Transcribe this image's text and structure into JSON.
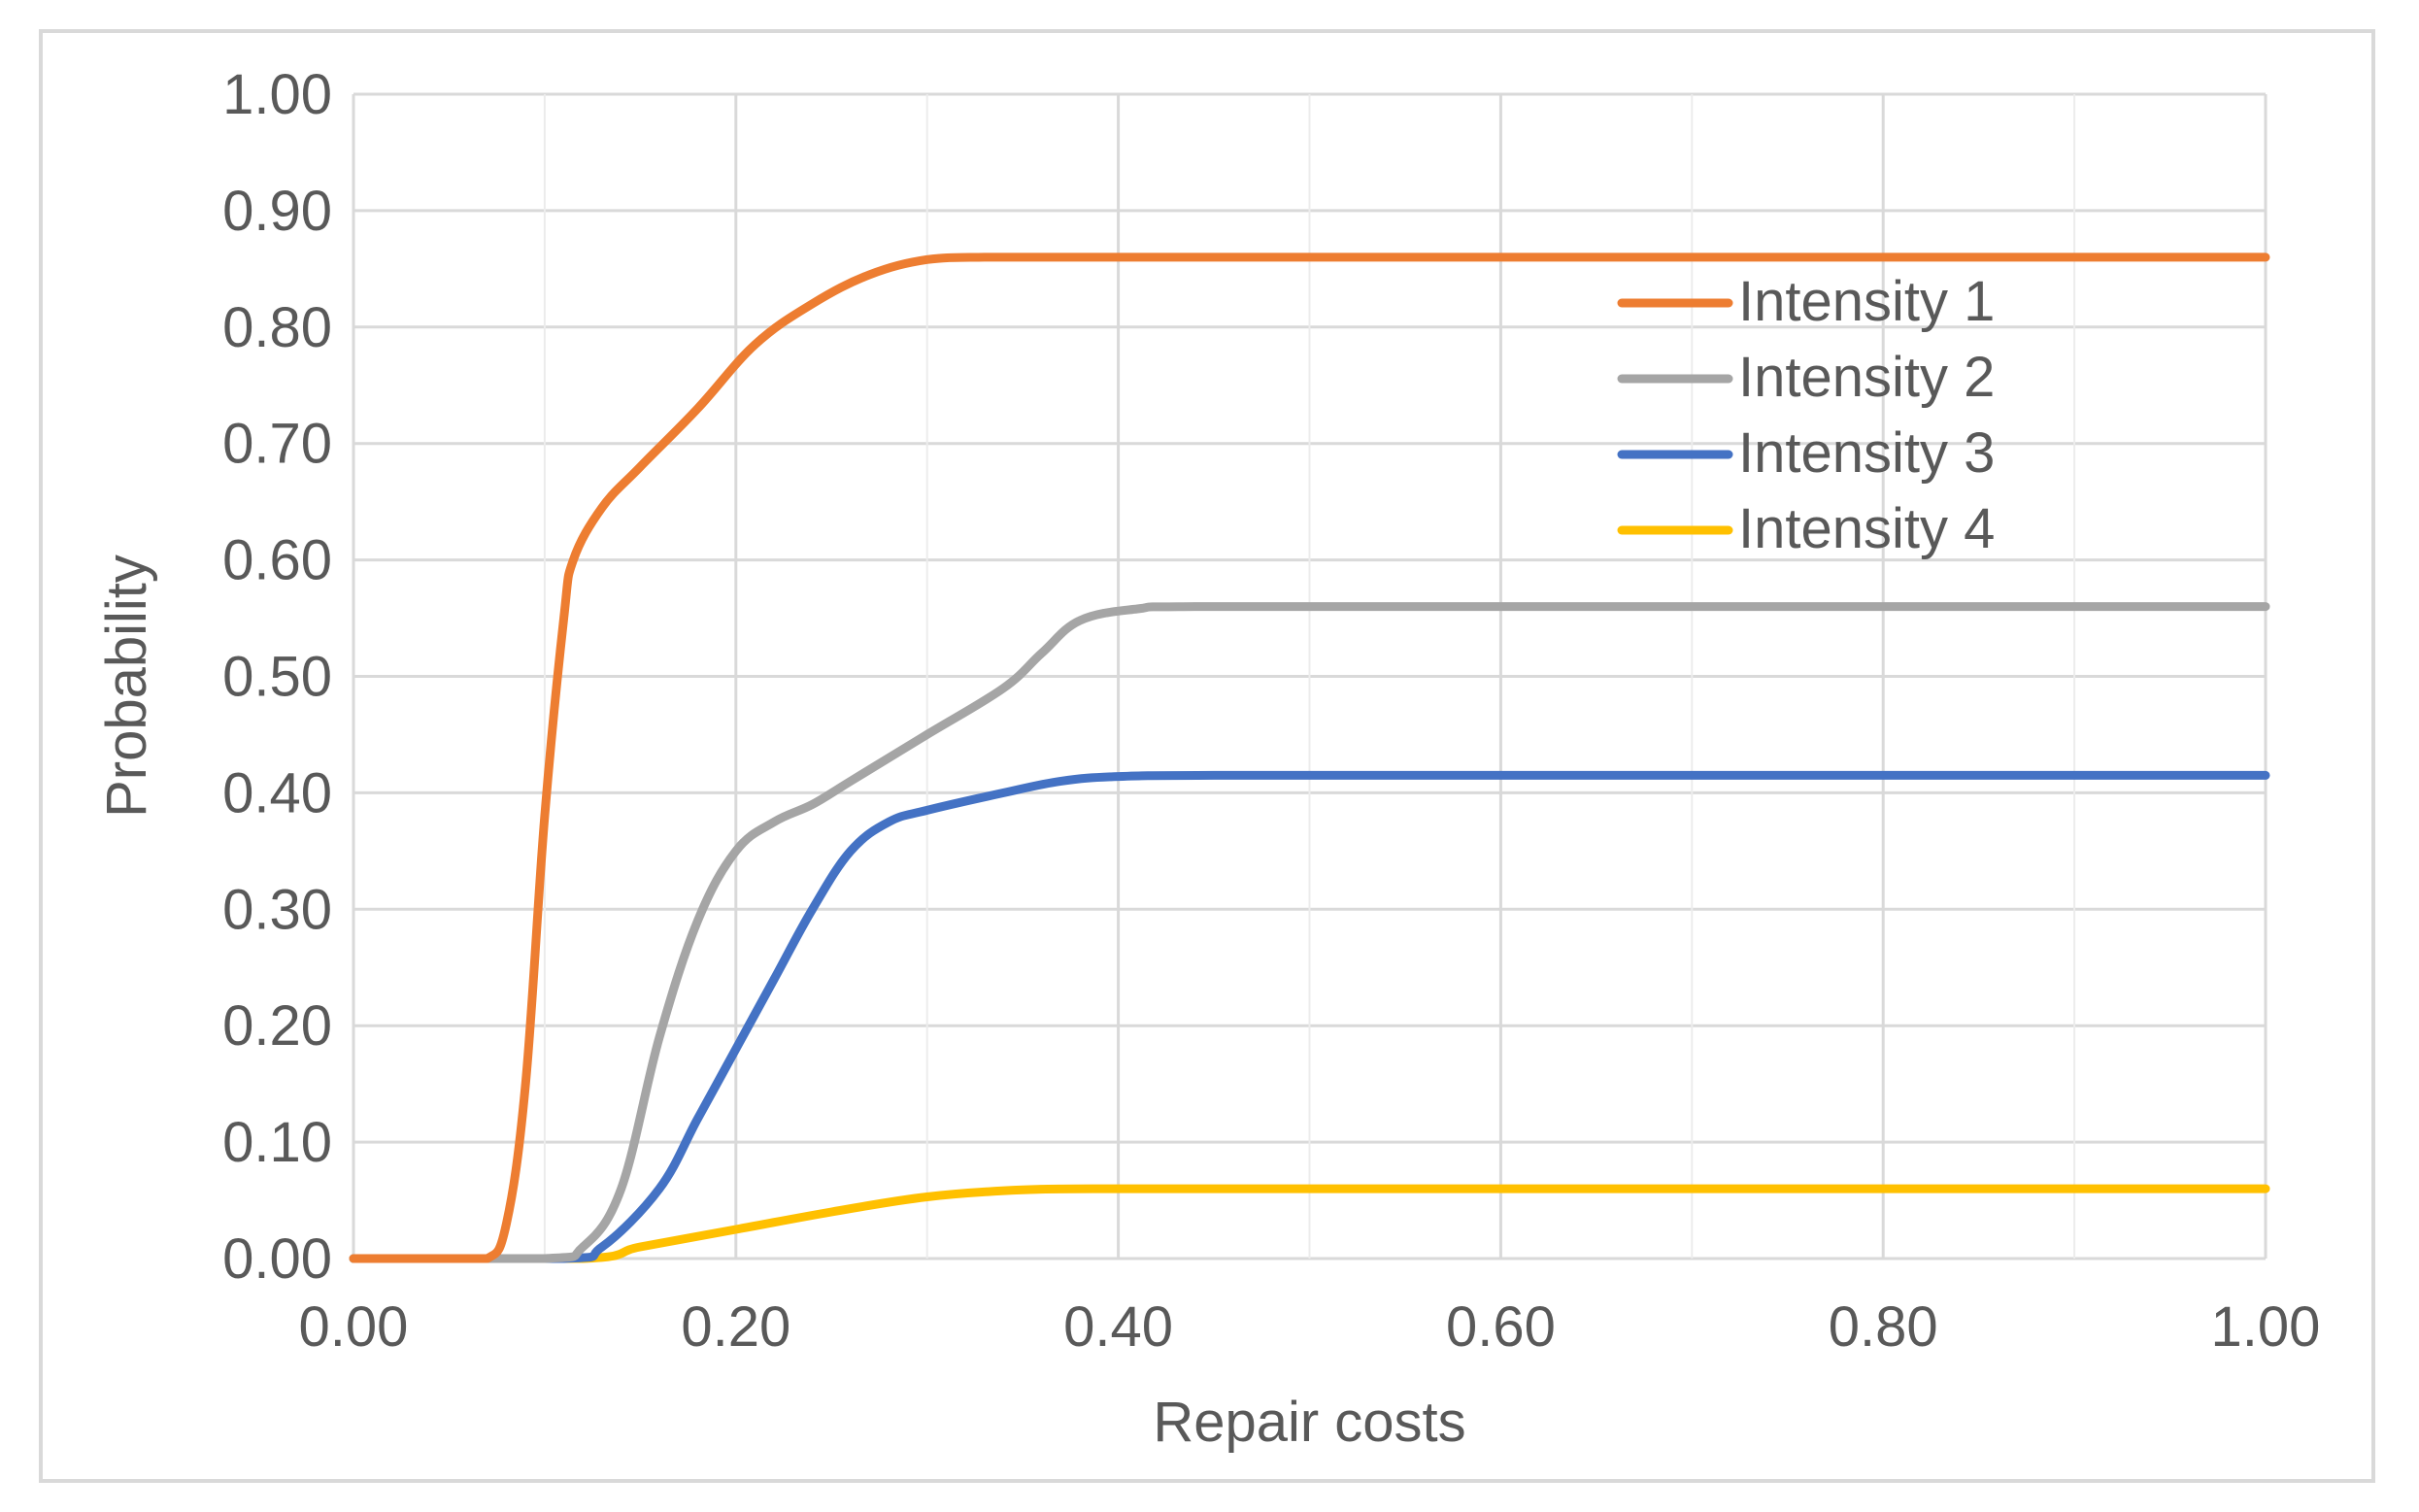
{
  "chart_data": {
    "type": "line",
    "title": "",
    "xlabel": "Repair costs",
    "ylabel": "Probability",
    "xlim": [
      0,
      1
    ],
    "ylim": [
      0,
      1
    ],
    "x_ticks": [
      "0.00",
      "0.20",
      "0.40",
      "0.60",
      "0.80",
      "1.00"
    ],
    "y_ticks": [
      "0.00",
      "0.10",
      "0.20",
      "0.30",
      "0.40",
      "0.50",
      "0.60",
      "0.70",
      "0.80",
      "0.90",
      "1.00"
    ],
    "grid": true,
    "legend_position": "top-right",
    "series": [
      {
        "name": "Intensity 1",
        "color": "#ED7D31",
        "x": [
          0.0,
          0.05,
          0.07,
          0.08,
          0.09,
          0.1,
          0.11,
          0.115,
          0.13,
          0.15,
          0.18,
          0.21,
          0.24,
          0.27,
          0.3,
          0.33,
          0.4,
          0.6,
          0.8,
          1.0
        ],
        "y": [
          0.0,
          0.0,
          0.0,
          0.03,
          0.15,
          0.38,
          0.55,
          0.6,
          0.645,
          0.68,
          0.73,
          0.785,
          0.82,
          0.845,
          0.858,
          0.86,
          0.86,
          0.86,
          0.86,
          0.86
        ]
      },
      {
        "name": "Intensity 2",
        "color": "#A5A5A5",
        "x": [
          0.0,
          0.1,
          0.12,
          0.14,
          0.16,
          0.18,
          0.2,
          0.22,
          0.24,
          0.26,
          0.3,
          0.34,
          0.36,
          0.38,
          0.41,
          0.44,
          0.6,
          0.8,
          1.0
        ],
        "y": [
          0.0,
          0.0,
          0.01,
          0.06,
          0.19,
          0.29,
          0.35,
          0.375,
          0.39,
          0.41,
          0.45,
          0.49,
          0.52,
          0.548,
          0.558,
          0.56,
          0.56,
          0.56,
          0.56
        ]
      },
      {
        "name": "Intensity 3",
        "color": "#4472C4",
        "x": [
          0.0,
          0.11,
          0.13,
          0.16,
          0.18,
          0.2,
          0.22,
          0.24,
          0.26,
          0.28,
          0.3,
          0.34,
          0.37,
          0.4,
          0.45,
          0.6,
          0.8,
          1.0
        ],
        "y": [
          0.0,
          0.0,
          0.01,
          0.06,
          0.12,
          0.18,
          0.24,
          0.3,
          0.35,
          0.375,
          0.385,
          0.4,
          0.41,
          0.414,
          0.415,
          0.415,
          0.415,
          0.415
        ]
      },
      {
        "name": "Intensity 4",
        "color": "#FFC000",
        "x": [
          0.0,
          0.12,
          0.15,
          0.2,
          0.25,
          0.3,
          0.35,
          0.4,
          0.6,
          0.8,
          1.0
        ],
        "y": [
          0.0,
          0.0,
          0.01,
          0.025,
          0.04,
          0.053,
          0.059,
          0.06,
          0.06,
          0.06,
          0.06
        ]
      }
    ]
  }
}
